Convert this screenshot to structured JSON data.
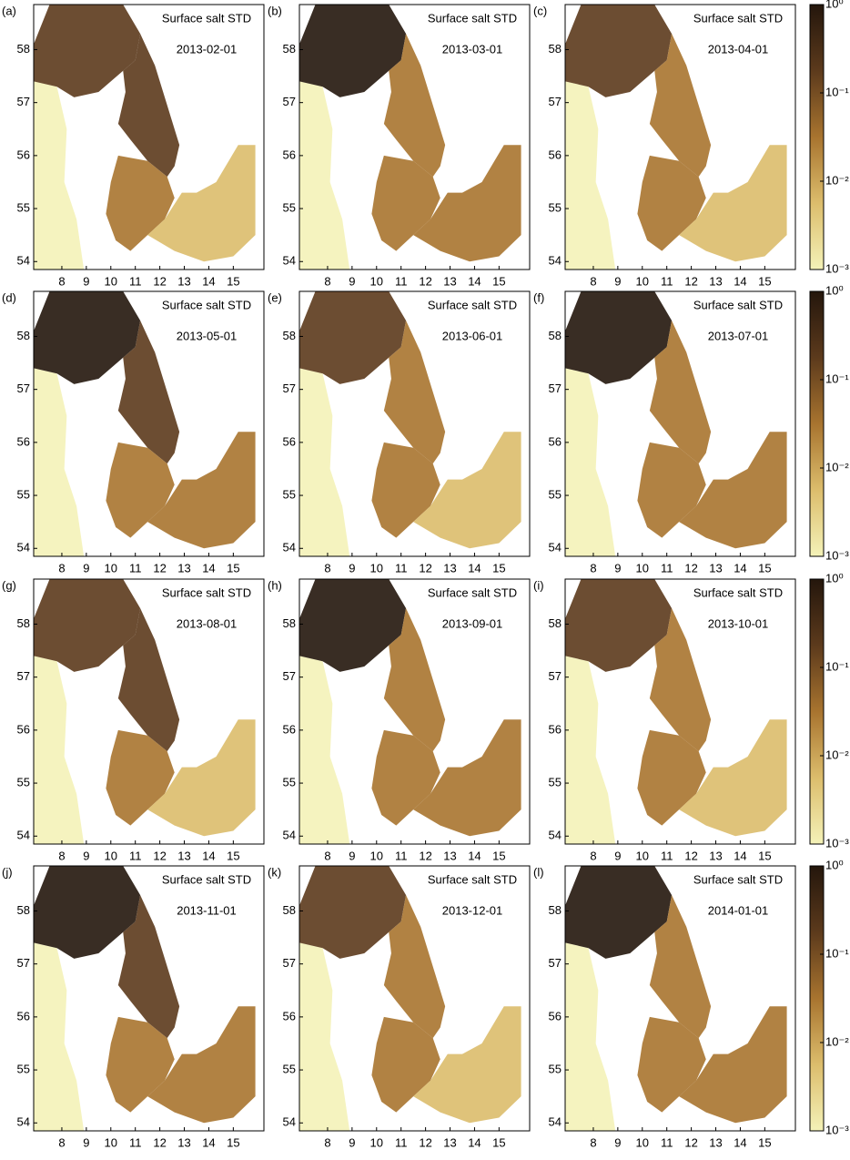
{
  "chart_data": [
    {
      "type": "map",
      "panel_label": "(a)",
      "title": "Surface salt STD",
      "date": "2013-02-01",
      "xlim": [
        6.85,
        16.25
      ],
      "ylim": [
        53.85,
        58.85
      ],
      "xticks": [
        8,
        9,
        10,
        11,
        12,
        13,
        14,
        15
      ],
      "yticks": [
        54,
        55,
        56,
        57,
        58
      ]
    },
    {
      "type": "map",
      "panel_label": "(b)",
      "title": "Surface salt STD",
      "date": "2013-03-01",
      "xlim": [
        6.85,
        16.25
      ],
      "ylim": [
        53.85,
        58.85
      ],
      "xticks": [
        8,
        9,
        10,
        11,
        12,
        13,
        14,
        15
      ],
      "yticks": [
        54,
        55,
        56,
        57,
        58
      ]
    },
    {
      "type": "map",
      "panel_label": "(c)",
      "title": "Surface salt STD",
      "date": "2013-04-01",
      "xlim": [
        6.85,
        16.25
      ],
      "ylim": [
        53.85,
        58.85
      ],
      "xticks": [
        8,
        9,
        10,
        11,
        12,
        13,
        14,
        15
      ],
      "yticks": [
        54,
        55,
        56,
        57,
        58
      ],
      "colorbar": {
        "clim": [
          0.001,
          1
        ],
        "log": true,
        "colors": [
          "#f4f2b8",
          "#dcbd6c",
          "#a8742f",
          "#5c3a1c",
          "#24160c"
        ],
        "ticks": [
          {
            "value": 1,
            "label": "10⁰"
          },
          {
            "value": 0.1,
            "label": "10⁻¹"
          },
          {
            "value": 0.01,
            "label": "10⁻²"
          },
          {
            "value": 0.001,
            "label": "10⁻³"
          }
        ]
      }
    },
    {
      "type": "map",
      "panel_label": "(d)",
      "title": "Surface salt STD",
      "date": "2013-05-01",
      "xlim": [
        6.85,
        16.25
      ],
      "ylim": [
        53.85,
        58.85
      ],
      "xticks": [
        8,
        9,
        10,
        11,
        12,
        13,
        14,
        15
      ],
      "yticks": [
        54,
        55,
        56,
        57,
        58
      ]
    },
    {
      "type": "map",
      "panel_label": "(e)",
      "title": "Surface salt STD",
      "date": "2013-06-01",
      "xlim": [
        6.85,
        16.25
      ],
      "ylim": [
        53.85,
        58.85
      ],
      "xticks": [
        8,
        9,
        10,
        11,
        12,
        13,
        14,
        15
      ],
      "yticks": [
        54,
        55,
        56,
        57,
        58
      ]
    },
    {
      "type": "map",
      "panel_label": "(f)",
      "title": "Surface salt STD",
      "date": "2013-07-01",
      "xlim": [
        6.85,
        16.25
      ],
      "ylim": [
        53.85,
        58.85
      ],
      "xticks": [
        8,
        9,
        10,
        11,
        12,
        13,
        14,
        15
      ],
      "yticks": [
        54,
        55,
        56,
        57,
        58
      ],
      "colorbar": {
        "clim": [
          0.001,
          1
        ],
        "log": true,
        "colors": [
          "#f4f2b8",
          "#dcbd6c",
          "#a8742f",
          "#5c3a1c",
          "#24160c"
        ],
        "ticks": [
          {
            "value": 1,
            "label": "10⁰"
          },
          {
            "value": 0.1,
            "label": "10⁻¹"
          },
          {
            "value": 0.01,
            "label": "10⁻²"
          },
          {
            "value": 0.001,
            "label": "10⁻³"
          }
        ]
      }
    },
    {
      "type": "map",
      "panel_label": "(g)",
      "title": "Surface salt STD",
      "date": "2013-08-01",
      "xlim": [
        6.85,
        16.25
      ],
      "ylim": [
        53.85,
        58.85
      ],
      "xticks": [
        8,
        9,
        10,
        11,
        12,
        13,
        14,
        15
      ],
      "yticks": [
        54,
        55,
        56,
        57,
        58
      ]
    },
    {
      "type": "map",
      "panel_label": "(h)",
      "title": "Surface salt STD",
      "date": "2013-09-01",
      "xlim": [
        6.85,
        16.25
      ],
      "ylim": [
        53.85,
        58.85
      ],
      "xticks": [
        8,
        9,
        10,
        11,
        12,
        13,
        14,
        15
      ],
      "yticks": [
        54,
        55,
        56,
        57,
        58
      ]
    },
    {
      "type": "map",
      "panel_label": "(i)",
      "title": "Surface salt STD",
      "date": "2013-10-01",
      "xlim": [
        6.85,
        16.25
      ],
      "ylim": [
        53.85,
        58.85
      ],
      "xticks": [
        8,
        9,
        10,
        11,
        12,
        13,
        14,
        15
      ],
      "yticks": [
        54,
        55,
        56,
        57,
        58
      ],
      "colorbar": {
        "clim": [
          0.001,
          1
        ],
        "log": true,
        "colors": [
          "#f4f2b8",
          "#dcbd6c",
          "#a8742f",
          "#5c3a1c",
          "#24160c"
        ],
        "ticks": [
          {
            "value": 1,
            "label": "10⁰"
          },
          {
            "value": 0.1,
            "label": "10⁻¹"
          },
          {
            "value": 0.01,
            "label": "10⁻²"
          },
          {
            "value": 0.001,
            "label": "10⁻³"
          }
        ]
      }
    },
    {
      "type": "map",
      "panel_label": "(j)",
      "title": "Surface salt STD",
      "date": "2013-11-01",
      "xlim": [
        6.85,
        16.25
      ],
      "ylim": [
        53.85,
        58.85
      ],
      "xticks": [
        8,
        9,
        10,
        11,
        12,
        13,
        14,
        15
      ],
      "yticks": [
        54,
        55,
        56,
        57,
        58
      ]
    },
    {
      "type": "map",
      "panel_label": "(k)",
      "title": "Surface salt STD",
      "date": "2013-12-01",
      "xlim": [
        6.85,
        16.25
      ],
      "ylim": [
        53.85,
        58.85
      ],
      "xticks": [
        8,
        9,
        10,
        11,
        12,
        13,
        14,
        15
      ],
      "yticks": [
        54,
        55,
        56,
        57,
        58
      ]
    },
    {
      "type": "map",
      "panel_label": "(l)",
      "title": "Surface salt STD",
      "date": "2014-01-01",
      "xlim": [
        6.85,
        16.25
      ],
      "ylim": [
        53.85,
        58.85
      ],
      "xticks": [
        8,
        9,
        10,
        11,
        12,
        13,
        14,
        15
      ],
      "yticks": [
        54,
        55,
        56,
        57,
        58
      ],
      "colorbar": {
        "clim": [
          0.001,
          1
        ],
        "log": true,
        "colors": [
          "#f4f2b8",
          "#dcbd6c",
          "#a8742f",
          "#5c3a1c",
          "#24160c"
        ],
        "ticks": [
          {
            "value": 1,
            "label": "10⁰"
          },
          {
            "value": 0.1,
            "label": "10⁻¹"
          },
          {
            "value": 0.01,
            "label": "10⁻²"
          },
          {
            "value": 0.001,
            "label": "10⁻³"
          }
        ]
      }
    }
  ]
}
